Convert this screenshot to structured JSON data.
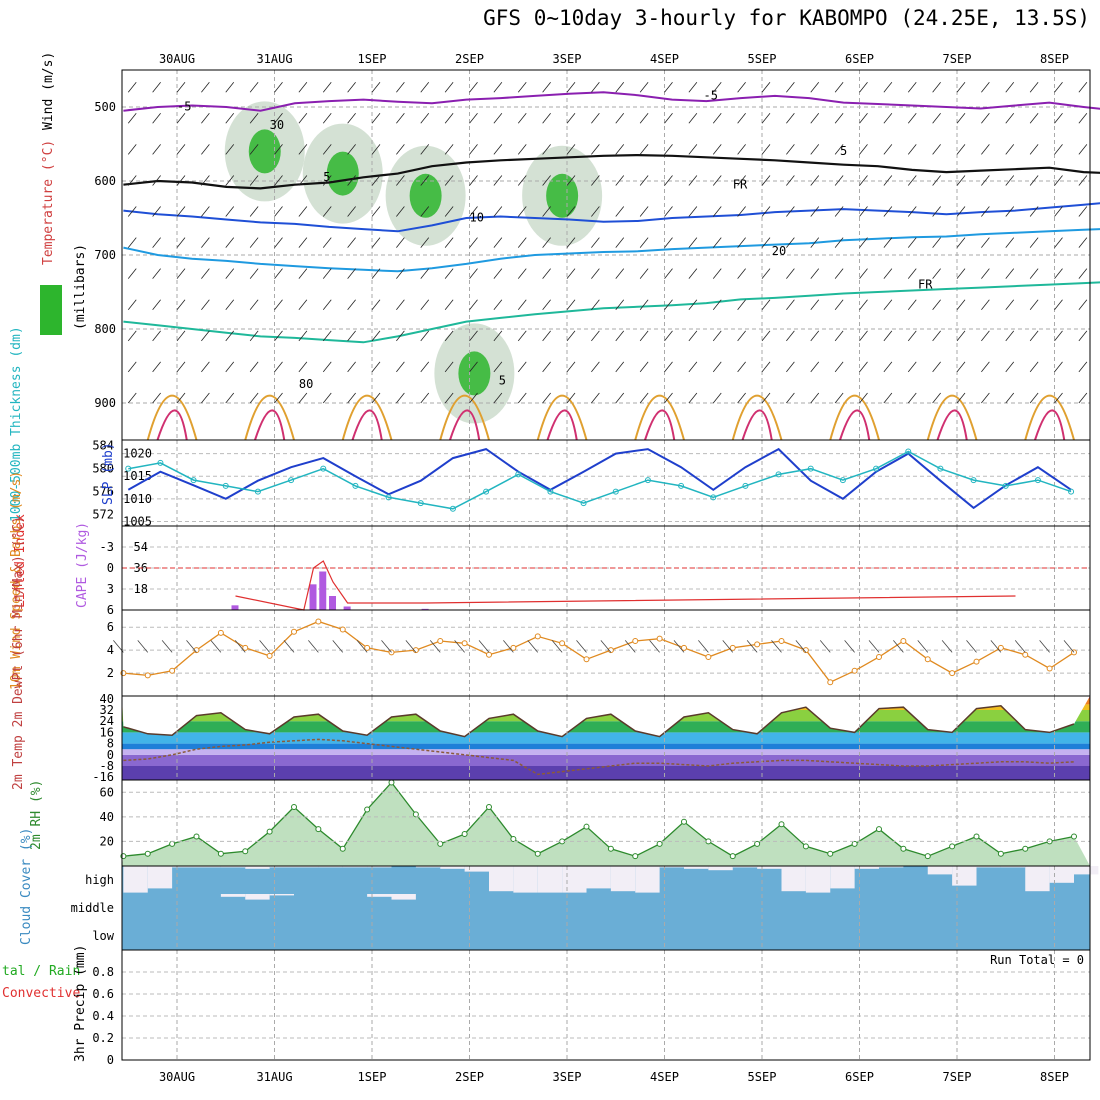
{
  "title": "GFS 0~10day 3-hourly for KABOMPO (24.25E, 13.5S)",
  "dates": [
    "30AUG",
    "31AUG",
    "1SEP",
    "2SEP",
    "3SEP",
    "4SEP",
    "5SEP",
    "6SEP",
    "7SEP",
    "8SEP"
  ],
  "colors": {
    "rh_fill": "#2db52d",
    "temp": "#cc3333",
    "slp": "#1f3fcc",
    "thickness": "#22b5c0",
    "cape": "#b05ae0",
    "lifted": "#e03030",
    "wind": "#e08a20",
    "rh2m": "#2d8a2d",
    "cloud_bg": "#6aaed6",
    "cloud_fill": "#f2eef6"
  },
  "chart_data": [
    {
      "type": "contour",
      "name": "upper-air",
      "ylabel_rh": "RH (%)",
      "ylabel_temp": "Temperature (°C)",
      "ylabel_wind": "Wind (m/s)",
      "ylabel_units": "(millibars)",
      "yticks": [
        500,
        600,
        700,
        800,
        900
      ],
      "ylim": [
        450,
        950
      ],
      "contour_labels": [
        "-5",
        "FR",
        "5",
        "10",
        "20",
        "FR",
        "5",
        "-5",
        "5",
        "80",
        "30"
      ],
      "contours": {
        "minus5": [
          505,
          500,
          498,
          500,
          505,
          495,
          492,
          490,
          493,
          495,
          490,
          488,
          485,
          482,
          480,
          484,
          490,
          492,
          488,
          485,
          488,
          494,
          496,
          498,
          500,
          502,
          498,
          494,
          500,
          505
        ],
        "freezing": [
          605,
          600,
          602,
          608,
          610,
          605,
          602,
          595,
          590,
          580,
          575,
          572,
          570,
          568,
          566,
          565,
          566,
          568,
          570,
          572,
          575,
          578,
          580,
          585,
          588,
          586,
          584,
          582,
          588,
          590
        ],
        "plus5": [
          640,
          645,
          648,
          652,
          656,
          658,
          662,
          665,
          668,
          660,
          650,
          648,
          650,
          652,
          655,
          654,
          650,
          648,
          646,
          642,
          640,
          638,
          640,
          642,
          645,
          642,
          640,
          636,
          632,
          628
        ],
        "plus10": [
          690,
          700,
          705,
          708,
          712,
          715,
          718,
          720,
          722,
          718,
          712,
          705,
          700,
          698,
          696,
          695,
          692,
          690,
          688,
          686,
          684,
          680,
          678,
          676,
          675,
          672,
          670,
          668,
          666,
          664
        ],
        "plus20": [
          790,
          795,
          800,
          805,
          810,
          812,
          815,
          818,
          810,
          800,
          790,
          785,
          780,
          776,
          772,
          770,
          768,
          765,
          760,
          758,
          755,
          752,
          750,
          748,
          746,
          744,
          742,
          740,
          738,
          736
        ]
      },
      "rh_blobs": [
        [
          0.95,
          560
        ],
        [
          1.75,
          590
        ],
        [
          2.6,
          620
        ],
        [
          3.1,
          860
        ],
        [
          4.0,
          620
        ]
      ]
    },
    {
      "type": "line",
      "name": "slp-thickness",
      "ylabel_left": "1000-500mb Thickness (dm)",
      "ylabel_right": "SLP (mb)",
      "yticks_left": [
        572,
        576,
        580,
        584
      ],
      "yticks_right": [
        1005,
        1010,
        1015,
        1020
      ],
      "ylim_left": [
        570,
        585
      ],
      "ylim_right": [
        1004,
        1023
      ],
      "x": [
        0,
        0.33,
        0.67,
        1.0,
        1.33,
        1.67,
        2.0,
        2.33,
        2.67,
        3.0,
        3.33,
        3.67,
        4.0,
        4.33,
        4.67,
        5.0,
        5.33,
        5.67,
        6.0,
        6.33,
        6.67,
        7.0,
        7.33,
        7.67,
        8.0,
        8.33,
        8.67,
        9.0,
        9.33,
        9.67
      ],
      "series": [
        {
          "name": "SLP",
          "values": [
            1012,
            1016,
            1013,
            1010,
            1014,
            1017,
            1019,
            1015,
            1011,
            1014,
            1019,
            1021,
            1016,
            1012,
            1016,
            1020,
            1021,
            1017,
            1012,
            1017,
            1021,
            1014,
            1010,
            1016,
            1020,
            1014,
            1008,
            1013,
            1017,
            1012
          ]
        },
        {
          "name": "Thickness",
          "values": [
            580,
            581,
            578,
            577,
            576,
            578,
            580,
            577,
            575,
            574,
            573,
            576,
            579,
            576,
            574,
            576,
            578,
            577,
            575,
            577,
            579,
            580,
            578,
            580,
            583,
            580,
            578,
            577,
            578,
            576
          ]
        }
      ]
    },
    {
      "type": "bar",
      "name": "cape-lifted-index",
      "ylabel_left": "Lifted Index",
      "ylabel_right": "CAPE (J/kg)",
      "yticks_left": [
        "-3",
        "0",
        "3",
        "6"
      ],
      "yticks_right": [
        18,
        36,
        54
      ],
      "ylim_cape": [
        0,
        72
      ],
      "x": [
        0.6,
        1.3,
        1.4,
        1.5,
        1.6,
        1.75,
        2.4,
        2.55,
        8.6
      ],
      "values": [
        4,
        0,
        22,
        33,
        12,
        3,
        0,
        1,
        0
      ],
      "lifted_index": [
        4,
        6,
        0,
        -1,
        2,
        5,
        5,
        5,
        4
      ]
    },
    {
      "type": "line",
      "name": "10m-wind",
      "ylabel": "10m Wind Speed & Barbs (m/s)",
      "yticks": [
        2,
        4,
        6
      ],
      "ylim": [
        0,
        7.5
      ],
      "x": [
        0,
        0.25,
        0.5,
        0.75,
        1.0,
        1.25,
        1.5,
        1.75,
        2.0,
        2.25,
        2.5,
        2.75,
        3.0,
        3.25,
        3.5,
        3.75,
        4.0,
        4.25,
        4.5,
        4.75,
        5.0,
        5.25,
        5.5,
        5.75,
        6.0,
        6.25,
        6.5,
        6.75,
        7.0,
        7.25,
        7.5,
        7.75,
        8.0,
        8.25,
        8.5,
        8.75,
        9.0,
        9.25,
        9.5,
        9.75
      ],
      "values": [
        2.0,
        1.8,
        2.2,
        4.0,
        5.5,
        4.2,
        3.5,
        5.6,
        6.5,
        5.8,
        4.2,
        3.8,
        4.0,
        4.8,
        4.6,
        3.6,
        4.2,
        5.2,
        4.6,
        3.2,
        4.0,
        4.8,
        5.0,
        4.2,
        3.4,
        4.2,
        4.5,
        4.8,
        4.0,
        1.2,
        2.2,
        3.4,
        4.8,
        3.2,
        2.0,
        3.0,
        4.2,
        3.6,
        2.4,
        3.8
      ]
    },
    {
      "type": "area",
      "name": "2m-temp",
      "ylabel": "2m Temp 2m DewPt (6hr Min/Max) (°C)",
      "yticks": [
        -16,
        -8,
        0,
        8,
        16,
        24,
        32,
        40
      ],
      "ylim": [
        -18,
        42
      ],
      "x": [
        0,
        0.25,
        0.5,
        0.75,
        1.0,
        1.25,
        1.5,
        1.75,
        2.0,
        2.25,
        2.5,
        2.75,
        3.0,
        3.25,
        3.5,
        3.75,
        4.0,
        4.25,
        4.5,
        4.75,
        5.0,
        5.25,
        5.5,
        5.75,
        6.0,
        6.25,
        6.5,
        6.75,
        7.0,
        7.25,
        7.5,
        7.75,
        8.0,
        8.25,
        8.5,
        8.75,
        9.0,
        9.25,
        9.5,
        9.75
      ],
      "series": [
        {
          "name": "Temp",
          "values": [
            20,
            15,
            14,
            28,
            30,
            18,
            15,
            27,
            29,
            17,
            14,
            27,
            29,
            17,
            13,
            26,
            29,
            17,
            13,
            26,
            29,
            17,
            13,
            27,
            30,
            18,
            15,
            30,
            34,
            19,
            16,
            33,
            34,
            18,
            16,
            33,
            35,
            18,
            16,
            22
          ]
        },
        {
          "name": "DewPt",
          "values": [
            -4,
            -3,
            0,
            4,
            6,
            7,
            9,
            10,
            11,
            10,
            8,
            6,
            4,
            2,
            0,
            -2,
            -4,
            -14,
            -12,
            -10,
            -8,
            -6,
            -6,
            -7,
            -8,
            -6,
            -5,
            -4,
            -4,
            -5,
            -6,
            -7,
            -8,
            -8,
            -7,
            -6,
            -5,
            -5,
            -6,
            -5
          ]
        }
      ]
    },
    {
      "type": "area",
      "name": "2m-rh",
      "ylabel": "2m RH (%)",
      "yticks": [
        20,
        40,
        60
      ],
      "ylim": [
        0,
        70
      ],
      "x": [
        0,
        0.25,
        0.5,
        0.75,
        1.0,
        1.25,
        1.5,
        1.75,
        2.0,
        2.25,
        2.5,
        2.75,
        3.0,
        3.25,
        3.5,
        3.75,
        4.0,
        4.25,
        4.5,
        4.75,
        5.0,
        5.25,
        5.5,
        5.75,
        6.0,
        6.25,
        6.5,
        6.75,
        7.0,
        7.25,
        7.5,
        7.75,
        8.0,
        8.25,
        8.5,
        8.75,
        9.0,
        9.25,
        9.5,
        9.75
      ],
      "values": [
        8,
        10,
        18,
        24,
        10,
        12,
        28,
        48,
        30,
        14,
        46,
        68,
        42,
        18,
        26,
        48,
        22,
        10,
        20,
        32,
        14,
        8,
        18,
        36,
        20,
        8,
        18,
        34,
        16,
        10,
        18,
        30,
        14,
        8,
        16,
        24,
        10,
        14,
        20,
        24
      ]
    },
    {
      "type": "area",
      "name": "cloud-cover",
      "ylabel": "Cloud Cover (%)",
      "yticks": [
        "high",
        "middle",
        "low"
      ],
      "x": [
        0,
        0.25,
        0.5,
        0.75,
        1.0,
        1.25,
        1.5,
        1.75,
        2.0,
        2.25,
        2.5,
        2.75,
        3.0,
        3.25,
        3.5,
        3.75,
        4.0,
        4.25,
        4.5,
        4.75,
        5.0,
        5.25,
        5.5,
        5.75,
        6.0,
        6.25,
        6.5,
        6.75,
        7.0,
        7.25,
        7.5,
        7.75,
        8.0,
        8.25,
        8.5,
        8.75,
        9.0,
        9.25,
        9.5,
        9.75
      ],
      "series": [
        {
          "name": "high",
          "values": [
            95,
            80,
            5,
            5,
            5,
            10,
            5,
            5,
            5,
            5,
            5,
            0,
            5,
            10,
            20,
            90,
            95,
            95,
            95,
            80,
            90,
            95,
            5,
            10,
            15,
            5,
            10,
            90,
            95,
            80,
            10,
            5,
            0,
            30,
            70,
            5,
            5,
            90,
            60,
            30
          ]
        },
        {
          "name": "middle",
          "values": [
            0,
            0,
            0,
            0,
            10,
            20,
            5,
            0,
            0,
            0,
            10,
            20,
            0,
            0,
            0,
            0,
            0,
            0,
            0,
            0,
            0,
            0,
            0,
            0,
            0,
            0,
            0,
            0,
            0,
            0,
            0,
            0,
            0,
            0,
            0,
            0,
            0,
            0,
            0,
            0
          ]
        }
      ]
    },
    {
      "type": "bar",
      "name": "3hr-precip",
      "ylabel": "3hr Precip (mm)",
      "legend_left": "tal / Rain",
      "legend_right": "Convective",
      "yticks": [
        0,
        0.2,
        0.4,
        0.6,
        0.8
      ],
      "ylim": [
        0,
        1.0
      ],
      "run_total_label": "Run Total = 0",
      "values": []
    }
  ]
}
